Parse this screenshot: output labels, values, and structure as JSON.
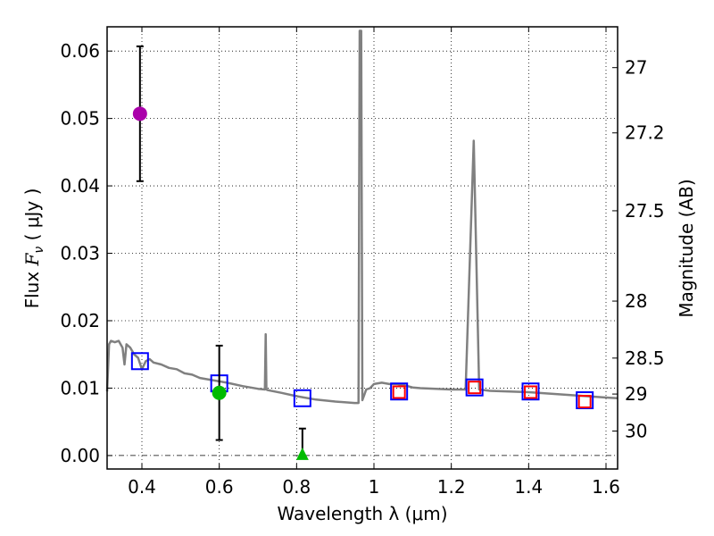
{
  "chart_data": {
    "type": "line",
    "xlabel": "Wavelength  λ (μm)",
    "ylabel": "Flux  F_ν  ( μJy )",
    "ylabel_parts": {
      "prefix": "Flux  ",
      "symbol": "F",
      "subscript": "ν",
      "unit": "  ( μJy )"
    },
    "y2label": "Magnitude (AB)",
    "xlim": [
      0.31,
      1.63
    ],
    "ylim": [
      -0.002,
      0.0636
    ],
    "grid": true,
    "x_ticks": [
      0.4,
      0.6,
      0.8,
      1.0,
      1.2,
      1.4,
      1.6
    ],
    "x_tick_labels": [
      "0.4",
      "0.6",
      "0.8",
      "1",
      "1.2",
      "1.4",
      "1.6"
    ],
    "y_ticks": [
      0,
      0.01,
      0.02,
      0.03,
      0.04,
      0.05,
      0.06
    ],
    "y_tick_labels": [
      "0.00",
      "0.01",
      "0.02",
      "0.03",
      "0.04",
      "0.05",
      "0.06"
    ],
    "y2_ticks": [
      27,
      27.2,
      27.5,
      28,
      28.5,
      29,
      30
    ],
    "y2_tick_labels": [
      "27",
      "27.2",
      "27.5",
      "28",
      "28.5",
      "29",
      "30"
    ],
    "mag_zeropoint": 23.9,
    "colors": {
      "spectrum": "#808080",
      "model": "#0000ff",
      "model_inner": "#ff0000",
      "obs_magenta": "#aa00aa",
      "obs_green": "#00bb00"
    },
    "series": [
      {
        "name": "spectrum",
        "type": "line",
        "x": [
          0.31,
          0.315,
          0.32,
          0.33,
          0.34,
          0.35,
          0.355,
          0.36,
          0.37,
          0.38,
          0.39,
          0.4,
          0.41,
          0.42,
          0.43,
          0.45,
          0.47,
          0.49,
          0.51,
          0.53,
          0.55,
          0.58,
          0.62,
          0.66,
          0.7,
          0.718,
          0.72,
          0.722,
          0.725,
          0.76,
          0.8,
          0.85,
          0.9,
          0.95,
          0.96,
          0.963,
          0.967,
          0.97,
          0.975,
          0.98,
          0.99,
          1.0,
          1.02,
          1.04,
          1.06,
          1.08,
          1.1,
          1.12,
          1.16,
          1.2,
          1.237,
          1.258,
          1.272,
          1.3,
          1.35,
          1.4,
          1.45,
          1.5,
          1.55,
          1.6,
          1.63
        ],
        "y": [
          0.0095,
          0.0165,
          0.017,
          0.0168,
          0.017,
          0.016,
          0.0135,
          0.0165,
          0.016,
          0.015,
          0.0145,
          0.0128,
          0.014,
          0.0143,
          0.0138,
          0.0135,
          0.013,
          0.0128,
          0.0122,
          0.012,
          0.0115,
          0.0112,
          0.0108,
          0.0103,
          0.0099,
          0.0098,
          0.018,
          0.0098,
          0.0097,
          0.0093,
          0.0088,
          0.0083,
          0.008,
          0.0078,
          0.0078,
          0.063,
          0.063,
          0.0082,
          0.009,
          0.0098,
          0.01,
          0.0106,
          0.0108,
          0.0106,
          0.0106,
          0.0104,
          0.0101,
          0.01,
          0.0099,
          0.0098,
          0.0098,
          0.0467,
          0.0098,
          0.0096,
          0.0095,
          0.0094,
          0.0092,
          0.009,
          0.0088,
          0.0086,
          0.0085
        ]
      },
      {
        "name": "model photometry",
        "type": "square",
        "x": [
          0.395,
          0.6,
          0.815,
          1.065,
          1.26,
          1.405,
          1.545
        ],
        "y": [
          0.014,
          0.0107,
          0.0085,
          0.0095,
          0.0101,
          0.0095,
          0.0082
        ]
      },
      {
        "name": "model photometry inner",
        "type": "square-small",
        "x": [
          1.065,
          1.26,
          1.405,
          1.545
        ],
        "y": [
          0.0094,
          0.0101,
          0.0094,
          0.008
        ]
      },
      {
        "name": "observed",
        "type": "errorbar",
        "points": [
          {
            "x": 0.395,
            "y": 0.0507,
            "ylo": 0.0407,
            "yhi": 0.0607,
            "marker": "circle",
            "color": "#aa00aa"
          },
          {
            "x": 0.6,
            "y": 0.0093,
            "ylo": 0.0023,
            "yhi": 0.0163,
            "marker": "circle",
            "color": "#00bb00"
          },
          {
            "x": 0.815,
            "y": 0.0,
            "ylo": 0.0,
            "yhi": 0.004,
            "marker": "triangle",
            "color": "#00bb00"
          }
        ]
      }
    ]
  }
}
